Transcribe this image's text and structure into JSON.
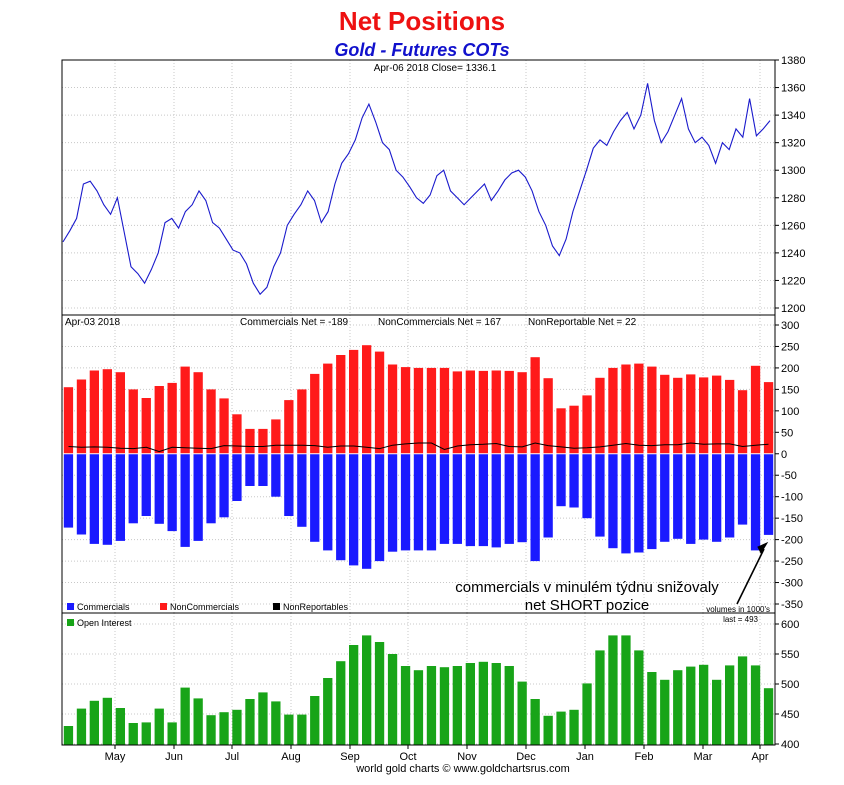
{
  "header": {
    "title": "Net Positions",
    "subtitle": "Gold - Futures COTs"
  },
  "colors": {
    "price": "#1a1acc",
    "commercials": "#1a1aff",
    "noncommercials": "#ff1a1a",
    "nonreportables": "#000000",
    "open_interest": "#18a418",
    "title": "#ee1111",
    "subtitle": "#1111cc"
  },
  "footer": "world gold charts © www.goldchartsrus.com",
  "annotation": {
    "line1": "commercials v minulém týdnu snižovaly",
    "line2": "net SHORT pozice"
  },
  "chart_data": [
    {
      "type": "line",
      "info": "Apr-06  2018   Close= 1336.1",
      "ylim": [
        1200,
        1380
      ],
      "yticks": [
        1200,
        1220,
        1240,
        1260,
        1280,
        1300,
        1320,
        1340,
        1360,
        1380
      ],
      "series": [
        {
          "values": [
            1248,
            1256,
            1265,
            1290,
            1292,
            1285,
            1275,
            1268,
            1280,
            1255,
            1230,
            1225,
            1218,
            1228,
            1240,
            1262,
            1265,
            1258,
            1270,
            1275,
            1285,
            1278,
            1262,
            1258,
            1250,
            1242,
            1240,
            1232,
            1218,
            1210,
            1215,
            1230,
            1240,
            1260,
            1268,
            1275,
            1285,
            1278,
            1262,
            1270,
            1290,
            1305,
            1312,
            1322,
            1338,
            1348,
            1335,
            1320,
            1315,
            1300,
            1295,
            1288,
            1280,
            1276,
            1282,
            1296,
            1300,
            1285,
            1280,
            1275,
            1280,
            1285,
            1290,
            1278,
            1285,
            1293,
            1298,
            1300,
            1295,
            1285,
            1270,
            1260,
            1245,
            1238,
            1250,
            1270,
            1285,
            1300,
            1316,
            1322,
            1318,
            1328,
            1336,
            1342,
            1330,
            1340,
            1363,
            1336,
            1320,
            1328,
            1340,
            1352,
            1330,
            1320,
            1324,
            1318,
            1305,
            1320,
            1315,
            1330,
            1324,
            1352,
            1325,
            1330,
            1336
          ]
        }
      ]
    },
    {
      "type": "bar",
      "info": "Apr-03  2018",
      "labels": {
        "commercials_net": "Commercials Net = -189",
        "noncommercials_net": "NonCommercials Net = 167",
        "nonreportable_net": "NonReportable Net = 22"
      },
      "legend": [
        "Commercials",
        "NonCommercials",
        "NonReportables"
      ],
      "ylim": [
        -350,
        300
      ],
      "yticks": [
        -350,
        -300,
        -250,
        -200,
        -150,
        -100,
        -50,
        0,
        50,
        100,
        150,
        200,
        250,
        300
      ],
      "series": [
        {
          "name": "NonCommercials",
          "values": [
            155,
            173,
            194,
            197,
            190,
            150,
            130,
            158,
            165,
            203,
            190,
            150,
            129,
            92,
            58,
            58,
            80,
            125,
            150,
            186,
            210,
            230,
            242,
            253,
            238,
            208,
            202,
            200,
            200,
            200,
            192,
            194,
            193,
            194,
            193,
            190,
            225,
            176,
            106,
            112,
            136,
            177,
            200,
            208,
            210,
            203,
            184,
            177,
            185,
            178,
            182,
            172,
            148,
            205,
            167
          ]
        },
        {
          "name": "Commercials",
          "values": [
            -172,
            -188,
            -210,
            -212,
            -203,
            -162,
            -145,
            -163,
            -180,
            -217,
            -203,
            -162,
            -148,
            -110,
            -75,
            -75,
            -100,
            -145,
            -170,
            -205,
            -225,
            -248,
            -260,
            -268,
            -250,
            -228,
            -225,
            -225,
            -225,
            -210,
            -210,
            -215,
            -215,
            -218,
            -210,
            -206,
            -250,
            -195,
            -122,
            -125,
            -150,
            -193,
            -220,
            -232,
            -230,
            -222,
            -205,
            -198,
            -210,
            -200,
            -205,
            -195,
            -165,
            -225,
            -189
          ]
        },
        {
          "name": "NonReportables",
          "values": [
            17,
            15,
            16,
            15,
            13,
            12,
            15,
            5,
            15,
            14,
            13,
            12,
            19,
            18,
            17,
            17,
            20,
            20,
            20,
            19,
            15,
            18,
            18,
            15,
            12,
            20,
            23,
            25,
            25,
            10,
            18,
            21,
            22,
            24,
            17,
            16,
            25,
            19,
            16,
            13,
            14,
            16,
            20,
            24,
            20,
            19,
            21,
            21,
            25,
            22,
            23,
            23,
            17,
            20,
            22
          ]
        }
      ]
    },
    {
      "type": "bar",
      "legend": [
        "Open Interest"
      ],
      "note": "volumes in 1000's",
      "last": "last = 493",
      "ylim": [
        400,
        600
      ],
      "yticks": [
        400,
        450,
        500,
        550,
        600
      ],
      "series": [
        {
          "name": "Open Interest",
          "values": [
            430,
            459,
            472,
            477,
            460,
            435,
            436,
            459,
            436,
            494,
            476,
            448,
            453,
            457,
            475,
            486,
            471,
            449,
            449,
            480,
            510,
            538,
            565,
            581,
            570,
            550,
            530,
            523,
            530,
            528,
            530,
            535,
            537,
            535,
            530,
            504,
            475,
            447,
            454,
            457,
            501,
            556,
            581,
            581,
            556,
            520,
            507,
            523,
            529,
            532,
            507,
            531,
            546,
            531,
            493
          ]
        }
      ],
      "xticks": [
        "May",
        "Jun",
        "Jul",
        "Aug",
        "Sep",
        "Oct",
        "Nov",
        "Dec",
        "Jan",
        "Feb",
        "Mar",
        "Apr"
      ]
    }
  ]
}
